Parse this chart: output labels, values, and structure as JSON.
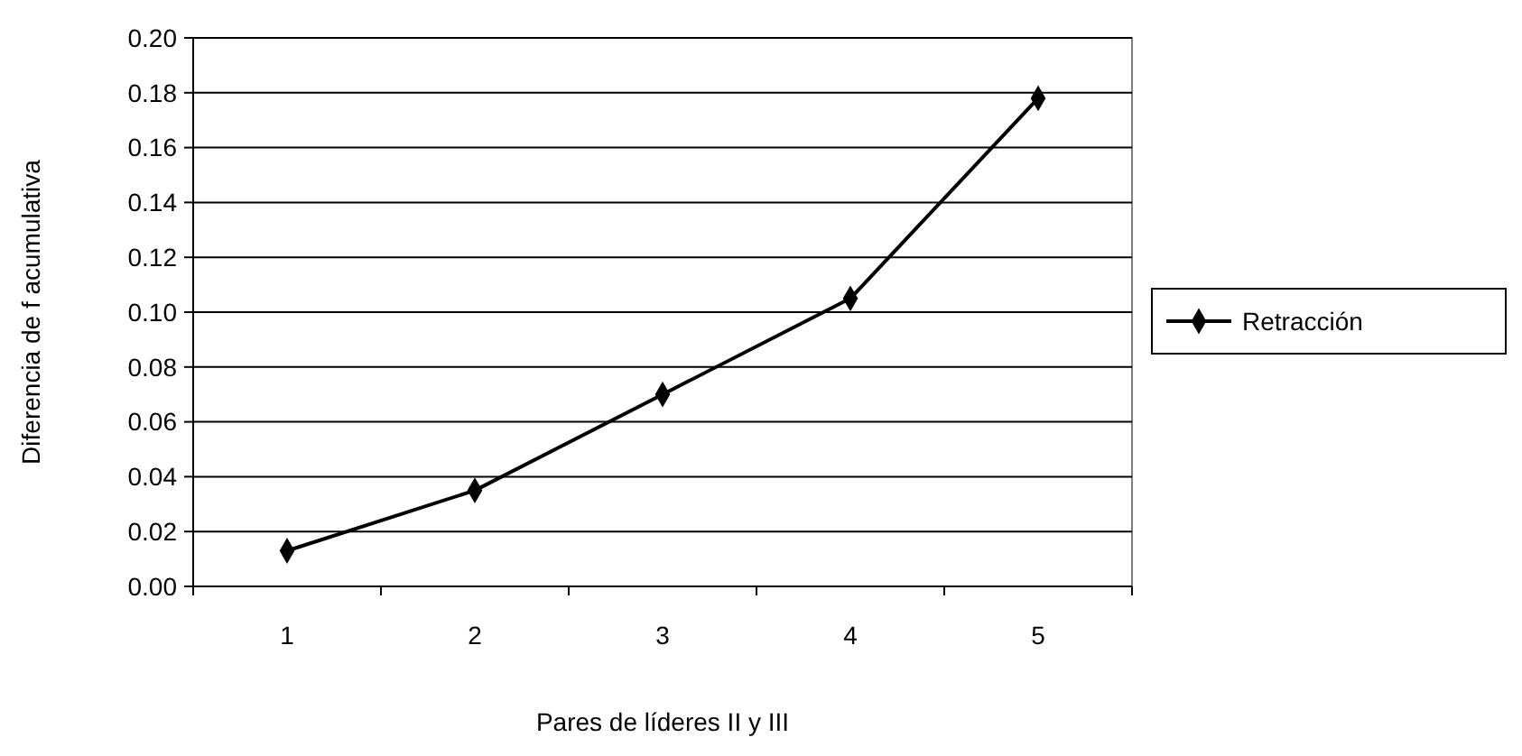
{
  "chart_data": {
    "type": "line",
    "xlabel": "Pares de líderes II y III",
    "ylabel": "Diferencia de f acumulativa",
    "categories": [
      "1",
      "2",
      "3",
      "4",
      "5"
    ],
    "series": [
      {
        "name": "Retracción",
        "color": "#000000",
        "values": [
          0.013,
          0.035,
          0.07,
          0.105,
          0.178
        ]
      }
    ],
    "ylim": [
      0,
      0.2
    ],
    "yticks": [
      {
        "value": 0,
        "label": "0.00"
      },
      {
        "value": 0.02,
        "label": "0.02"
      },
      {
        "value": 0.04,
        "label": "0.04"
      },
      {
        "value": 0.06,
        "label": "0.06"
      },
      {
        "value": 0.08,
        "label": "0.08"
      },
      {
        "value": 0.1,
        "label": "0.10"
      },
      {
        "value": 0.12,
        "label": "0.12"
      },
      {
        "value": 0.14,
        "label": "0.14"
      },
      {
        "value": 0.16,
        "label": "0.16"
      },
      {
        "value": 0.18,
        "label": "0.18"
      },
      {
        "value": 0.2,
        "label": "0.20"
      }
    ],
    "grid": "y",
    "legend": "right",
    "marker": "diamond",
    "line_style": "solid"
  }
}
